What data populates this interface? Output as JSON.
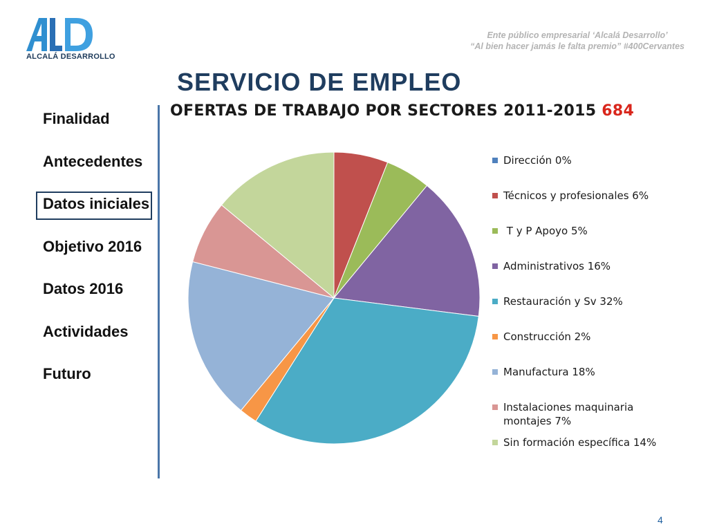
{
  "header": {
    "logo_text": "ALCALÁ DESARROLLO",
    "tagline_line1": "Ente público empresarial ‘Alcalá Desarrollo’",
    "tagline_line2": "“Al bien hacer jamás le falta premio” #400Cervantes"
  },
  "page_title": "SERVICIO DE EMPLEO",
  "nav": {
    "items": [
      {
        "label": "Finalidad"
      },
      {
        "label": "Antecedentes"
      },
      {
        "label": "Datos iniciales"
      },
      {
        "label": "Objetivo 2016"
      },
      {
        "label": "Datos 2016"
      },
      {
        "label": "Actividades"
      },
      {
        "label": "Futuro"
      }
    ],
    "active_index": 2
  },
  "chart_title": {
    "text": "OFERTAS DE TRABAJO POR SECTORES 2011-2015",
    "highlight": "684",
    "highlight_color": "#d9261c"
  },
  "chart_data": {
    "type": "pie",
    "title": "OFERTAS DE TRABAJO POR SECTORES 2011-2015 684",
    "legend_position": "right",
    "slices": [
      {
        "label": "Dirección 0%",
        "value": 0,
        "color": "#4f81bd"
      },
      {
        "label": "Técnicos y profesionales 6%",
        "value": 6,
        "color": "#c0504d"
      },
      {
        "label": " T y P Apoyo 5%",
        "value": 5,
        "color": "#9bbb59"
      },
      {
        "label": "Administrativos 16%",
        "value": 16,
        "color": "#8064a2"
      },
      {
        "label": "Restauración y Sv 32%",
        "value": 32,
        "color": "#4bacc6"
      },
      {
        "label": "Construcción 2%",
        "value": 2,
        "color": "#f79646"
      },
      {
        "label": "Manufactura 18%",
        "value": 18,
        "color": "#95b3d7"
      },
      {
        "label": "Instalaciones maquinaria montajes 7%",
        "value": 7,
        "color": "#d99694"
      },
      {
        "label": "Sin formación específica 14%",
        "value": 14,
        "color": "#c3d69b"
      }
    ]
  },
  "page_number": "4"
}
